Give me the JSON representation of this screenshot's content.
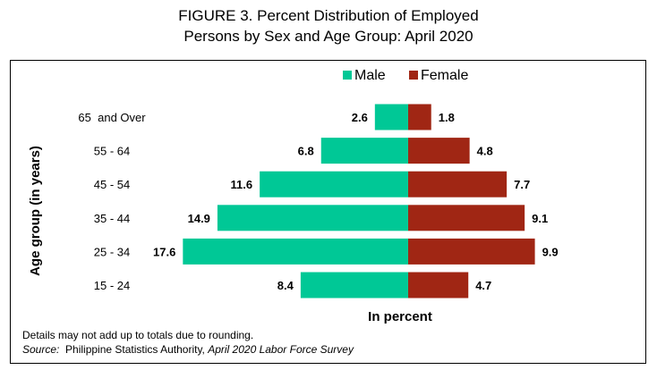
{
  "title": {
    "line1": "FIGURE 3. Percent Distribution of Employed",
    "line2": "Persons by Sex and Age Group: April 2020"
  },
  "chart_data": {
    "type": "bar",
    "orientation": "horizontal-diverging",
    "categories": [
      "65  and Over",
      "55 - 64",
      "45 - 54",
      "35 - 44",
      "25 - 34",
      "15 - 24"
    ],
    "series": [
      {
        "name": "Male",
        "color": "#00c896",
        "values": [
          2.6,
          6.8,
          11.6,
          14.9,
          17.6,
          8.4
        ]
      },
      {
        "name": "Female",
        "color": "#a02614",
        "values": [
          1.8,
          4.8,
          7.7,
          9.1,
          9.9,
          4.7
        ]
      }
    ],
    "xlabel": "In percent",
    "ylabel": "Age group (in years)",
    "legend": "top",
    "grid": false
  },
  "footnote": "Details may not add up to totals due to rounding.",
  "source": {
    "label": "Source:",
    "text": "  Philippine Statistics Authority, ",
    "italic": "April 2020 Labor Force Survey"
  }
}
